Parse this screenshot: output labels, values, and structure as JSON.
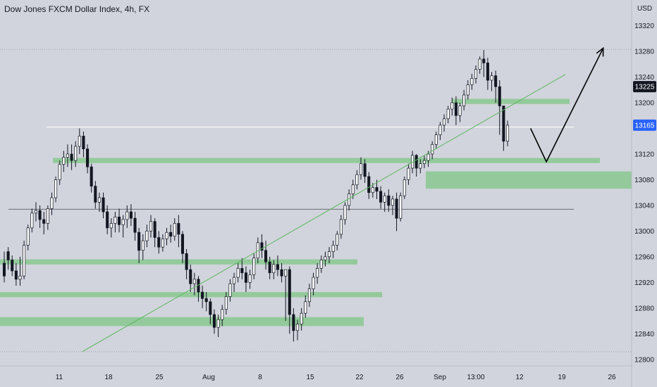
{
  "header": {
    "title": "Dow Jones FXCM Dollar Index, 4h, FX",
    "currency": "USD"
  },
  "colors": {
    "background": "#d1d4dc",
    "candle": "#131722",
    "zone": "#7fc786",
    "resistance_line": "#ffffff",
    "support_line": "#6b6e76",
    "trendline": "#5bb85f",
    "last_price_badge": "#131722",
    "current_price_badge": "#2962ff"
  },
  "chart_data": {
    "type": "candlestick",
    "title": "Dow Jones FXCM Dollar Index, 4h, FX",
    "ylabel": "USD",
    "ylim": [
      12790,
      13360
    ],
    "x_tick_labels": [
      "11",
      "18",
      "25",
      "Aug",
      "8",
      "15",
      "22",
      "26",
      "Sep",
      "13:00",
      "12",
      "19",
      "26"
    ],
    "y_tick_labels": [
      "13320",
      "13280",
      "13240",
      "13200",
      "13120",
      "13080",
      "13040",
      "13000",
      "12960",
      "12920",
      "12880",
      "12840",
      "12800"
    ],
    "price_badges": [
      {
        "label": "13225",
        "value": 13225,
        "kind": "previous-close"
      },
      {
        "label": "13165",
        "value": 13165,
        "kind": "current-price"
      }
    ],
    "reference_lines": [
      {
        "value": 13283,
        "style": "dotted"
      },
      {
        "value": 13162,
        "style": "resistance"
      },
      {
        "value": 13034,
        "style": "support"
      },
      {
        "value": 12812,
        "style": "dotted"
      }
    ],
    "zones": [
      {
        "from_x": 17,
        "to_x": 100,
        "low": 13106,
        "high": 13114
      },
      {
        "from_x": 76,
        "to_x": 90,
        "low": 13198,
        "high": 13206
      },
      {
        "from_x": 71,
        "to_x": 100,
        "low": 13066,
        "high": 13093
      },
      {
        "from_x": 0,
        "to_x": 100,
        "low": 12948,
        "high": 12956
      },
      {
        "from_x": 0,
        "to_x": 100,
        "low": 12897,
        "high": 12905
      },
      {
        "from_x": 0,
        "to_x": 100,
        "low": 12852,
        "high": 12866
      }
    ],
    "trendline": {
      "from": [
        13,
        12812
      ],
      "to": [
        89.5,
        13244
      ]
    },
    "projection_path": [
      [
        84,
        13160
      ],
      [
        86.5,
        13108
      ],
      [
        95.5,
        13285
      ]
    ],
    "candles": [
      [
        12950,
        12968,
        12930,
        12920
      ],
      [
        12968,
        12975,
        12955,
        12940
      ],
      [
        12955,
        12962,
        12938,
        12930
      ],
      [
        12938,
        12950,
        12925,
        12915
      ],
      [
        12925,
        12960,
        12930,
        12915
      ],
      [
        12930,
        12985,
        12978,
        12925
      ],
      [
        12978,
        13010,
        13005,
        12970
      ],
      [
        13005,
        13035,
        13028,
        12998
      ],
      [
        13028,
        13045,
        13032,
        13015
      ],
      [
        13032,
        13040,
        13018,
        13005
      ],
      [
        13018,
        13030,
        13012,
        12995
      ],
      [
        13012,
        13040,
        13035,
        13002
      ],
      [
        13035,
        13060,
        13052,
        13025
      ],
      [
        13052,
        13085,
        13080,
        13045
      ],
      [
        13080,
        13110,
        13104,
        13072
      ],
      [
        13104,
        13125,
        13115,
        13092
      ],
      [
        13115,
        13135,
        13120,
        13100
      ],
      [
        13120,
        13135,
        13110,
        13095
      ],
      [
        13110,
        13140,
        13132,
        13100
      ],
      [
        13132,
        13160,
        13148,
        13120
      ],
      [
        13148,
        13155,
        13128,
        13115
      ],
      [
        13128,
        13135,
        13100,
        13090
      ],
      [
        13100,
        13105,
        13070,
        13060
      ],
      [
        13070,
        13078,
        13045,
        13035
      ],
      [
        13045,
        13060,
        13052,
        13030
      ],
      [
        13052,
        13060,
        13030,
        13020
      ],
      [
        13030,
        13040,
        13005,
        12995
      ],
      [
        13005,
        13020,
        13012,
        12990
      ],
      [
        13012,
        13030,
        13022,
        12998
      ],
      [
        13022,
        13035,
        13010,
        12998
      ],
      [
        13010,
        13025,
        13018,
        12990
      ],
      [
        13018,
        13040,
        13030,
        13005
      ],
      [
        13030,
        13042,
        13020,
        13008
      ],
      [
        13020,
        13030,
        12998,
        12985
      ],
      [
        12998,
        13005,
        12970,
        12950
      ],
      [
        12970,
        12995,
        12985,
        12955
      ],
      [
        12985,
        13010,
        13000,
        12975
      ],
      [
        13000,
        13025,
        13015,
        12990
      ],
      [
        13015,
        13020,
        12990,
        12975
      ],
      [
        12990,
        13000,
        12975,
        12965
      ],
      [
        12975,
        12995,
        12988,
        12968
      ],
      [
        12988,
        13005,
        12998,
        12978
      ],
      [
        12998,
        13010,
        12992,
        12982
      ],
      [
        12992,
        13020,
        13012,
        12985
      ],
      [
        13012,
        13025,
        12995,
        12975
      ],
      [
        12995,
        13000,
        12965,
        12950
      ],
      [
        12965,
        12972,
        12940,
        12925
      ],
      [
        12940,
        12948,
        12918,
        12905
      ],
      [
        12918,
        12935,
        12925,
        12900
      ],
      [
        12925,
        12930,
        12905,
        12890
      ],
      [
        12905,
        12915,
        12895,
        12880
      ],
      [
        12895,
        12905,
        12890,
        12875
      ],
      [
        12890,
        12895,
        12870,
        12855
      ],
      [
        12870,
        12878,
        12850,
        12840
      ],
      [
        12850,
        12870,
        12862,
        12835
      ],
      [
        12862,
        12885,
        12878,
        12852
      ],
      [
        12878,
        12905,
        12898,
        12870
      ],
      [
        12898,
        12925,
        12918,
        12890
      ],
      [
        12918,
        12935,
        12928,
        12905
      ],
      [
        12928,
        12950,
        12942,
        12920
      ],
      [
        12942,
        12958,
        12935,
        12925
      ],
      [
        12935,
        12945,
        12920,
        12905
      ],
      [
        12920,
        12940,
        12932,
        12910
      ],
      [
        12932,
        12965,
        12958,
        12925
      ],
      [
        12958,
        12990,
        12982,
        12950
      ],
      [
        12982,
        12995,
        12970,
        12958
      ],
      [
        12970,
        12985,
        12952,
        12940
      ],
      [
        12952,
        12960,
        12935,
        12925
      ],
      [
        12935,
        12955,
        12948,
        12925
      ],
      [
        12948,
        12962,
        12940,
        12930
      ],
      [
        12940,
        12950,
        12930,
        12920
      ],
      [
        12930,
        12938,
        12940,
        12860
      ],
      [
        12940,
        12945,
        12870,
        12840
      ],
      [
        12870,
        12880,
        12845,
        12828
      ],
      [
        12845,
        12862,
        12855,
        12830
      ],
      [
        12855,
        12880,
        12872,
        12845
      ],
      [
        12872,
        12900,
        12890,
        12865
      ],
      [
        12890,
        12918,
        12910,
        12882
      ],
      [
        12910,
        12935,
        12928,
        12900
      ],
      [
        12928,
        12950,
        12942,
        12918
      ],
      [
        12942,
        12962,
        12955,
        12935
      ],
      [
        12955,
        12968,
        12960,
        12945
      ],
      [
        12960,
        12975,
        12968,
        12950
      ],
      [
        12968,
        12985,
        12978,
        12958
      ],
      [
        12978,
        13000,
        12995,
        12970
      ],
      [
        12995,
        13025,
        13018,
        12988
      ],
      [
        13018,
        13045,
        13040,
        13010
      ],
      [
        13040,
        13065,
        13058,
        13032
      ],
      [
        13058,
        13080,
        13072,
        13050
      ],
      [
        13072,
        13095,
        13088,
        13065
      ],
      [
        13088,
        13115,
        13105,
        13080
      ],
      [
        13105,
        13112,
        13085,
        13075
      ],
      [
        13085,
        13092,
        13060,
        13050
      ],
      [
        13060,
        13075,
        13068,
        13052
      ],
      [
        13068,
        13080,
        13062,
        13050
      ],
      [
        13062,
        13070,
        13045,
        13035
      ],
      [
        13045,
        13060,
        13055,
        13030
      ],
      [
        13055,
        13065,
        13040,
        13030
      ],
      [
        13040,
        13055,
        13050,
        13025
      ],
      [
        13050,
        13060,
        13020,
        13000
      ],
      [
        13020,
        13060,
        13055,
        13015
      ],
      [
        13055,
        13085,
        13080,
        13050
      ],
      [
        13080,
        13105,
        13098,
        13072
      ],
      [
        13098,
        13125,
        13118,
        13090
      ],
      [
        13118,
        13120,
        13098,
        13085
      ],
      [
        13098,
        13112,
        13105,
        13090
      ],
      [
        13105,
        13118,
        13110,
        13098
      ],
      [
        13110,
        13125,
        13120,
        13100
      ],
      [
        13120,
        13140,
        13135,
        13112
      ],
      [
        13135,
        13155,
        13150,
        13128
      ],
      [
        13150,
        13170,
        13165,
        13142
      ],
      [
        13165,
        13182,
        13175,
        13155
      ],
      [
        13175,
        13195,
        13190,
        13168
      ],
      [
        13190,
        13208,
        13200,
        13180
      ],
      [
        13200,
        13210,
        13180,
        13165
      ],
      [
        13180,
        13200,
        13195,
        13170
      ],
      [
        13195,
        13220,
        13212,
        13188
      ],
      [
        13212,
        13235,
        13228,
        13205
      ],
      [
        13228,
        13245,
        13238,
        13220
      ],
      [
        13238,
        13258,
        13252,
        13230
      ],
      [
        13252,
        13272,
        13268,
        13245
      ],
      [
        13268,
        13282,
        13262,
        13240
      ],
      [
        13262,
        13270,
        13235,
        13220
      ],
      [
        13235,
        13248,
        13242,
        13218
      ],
      [
        13242,
        13250,
        13225,
        13200
      ],
      [
        13225,
        13235,
        13195,
        13150
      ],
      [
        13195,
        13170,
        13140,
        13125
      ],
      [
        13140,
        13172,
        13165,
        13132
      ]
    ]
  }
}
